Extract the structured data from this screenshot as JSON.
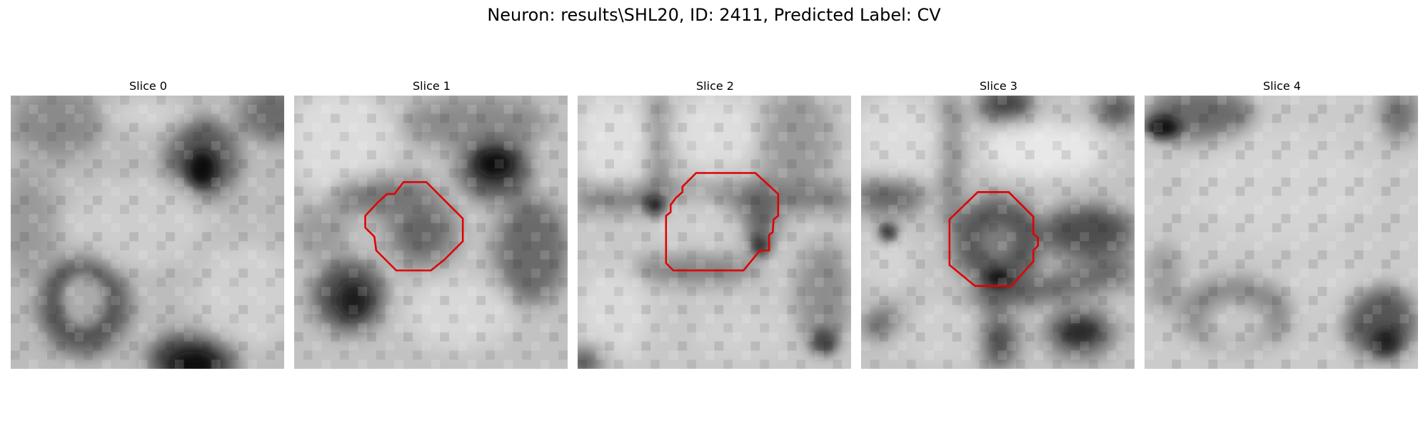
{
  "figure": {
    "title": "Neuron: results\\SHL20, ID: 2411, Predicted Label: CV"
  },
  "colors": {
    "contour": "#e00000",
    "background": "#ffffff"
  },
  "slices": [
    {
      "title": "Slice 0",
      "has_contour": false,
      "contour_color": "#e00000"
    },
    {
      "title": "Slice 1",
      "has_contour": true,
      "contour_color": "#e00000"
    },
    {
      "title": "Slice 2",
      "has_contour": true,
      "contour_color": "#e00000"
    },
    {
      "title": "Slice 3",
      "has_contour": true,
      "contour_color": "#e00000"
    },
    {
      "title": "Slice 4",
      "has_contour": false,
      "contour_color": "#e00000"
    }
  ]
}
